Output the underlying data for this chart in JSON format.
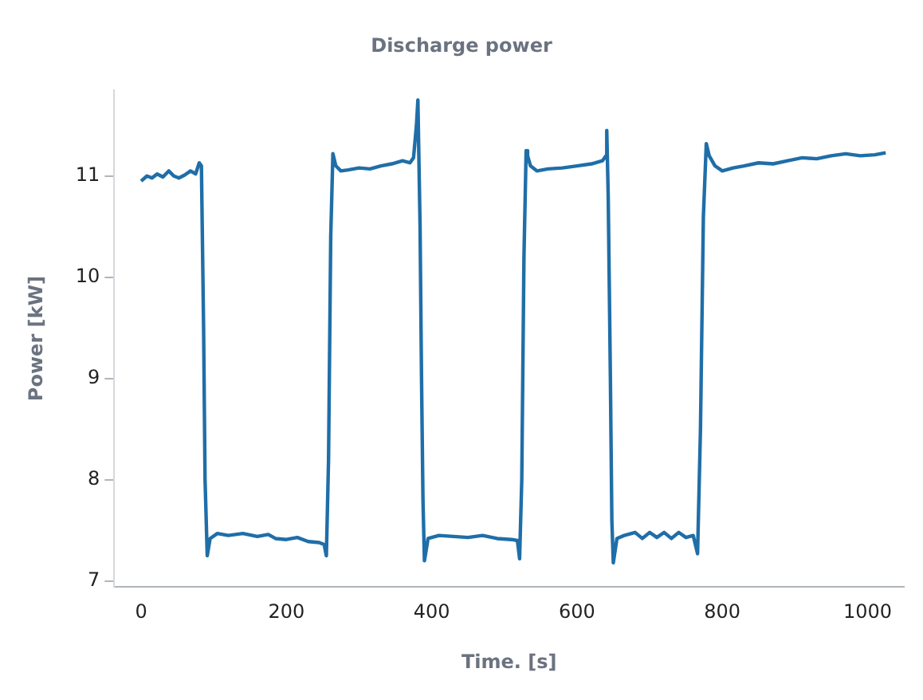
{
  "chart_data": {
    "type": "line",
    "title": "Discharge power",
    "xlabel": "Time. [s]",
    "ylabel": "Power [kW]",
    "xlim": [
      -37,
      1050
    ],
    "ylim": [
      6.94,
      11.85
    ],
    "xticks": [
      0,
      200,
      400,
      600,
      800,
      1000
    ],
    "yticks": [
      7,
      8,
      9,
      10,
      11
    ],
    "grid": false,
    "legend": false,
    "marker": "none",
    "line_style": "solid",
    "series": [
      {
        "color": "#1f6ea8",
        "x": [
          0,
          8,
          15,
          22,
          30,
          38,
          45,
          52,
          60,
          68,
          75,
          80,
          83,
          86,
          88,
          91,
          95,
          105,
          120,
          140,
          160,
          175,
          185,
          200,
          215,
          230,
          245,
          252,
          255,
          258,
          261,
          264,
          268,
          275,
          285,
          300,
          315,
          330,
          345,
          360,
          370,
          375,
          379,
          381,
          384,
          386,
          388,
          390,
          395,
          410,
          430,
          450,
          470,
          490,
          510,
          518,
          521,
          524,
          527,
          530,
          532,
          536,
          545,
          560,
          580,
          600,
          620,
          635,
          640,
          641,
          643,
          646,
          648,
          650,
          655,
          665,
          680,
          690,
          700,
          710,
          720,
          730,
          740,
          750,
          760,
          766,
          770,
          774,
          778,
          782,
          790,
          800,
          815,
          830,
          850,
          870,
          890,
          910,
          930,
          950,
          970,
          990,
          1010,
          1025
        ],
        "values": [
          10.95,
          11.0,
          10.98,
          11.02,
          10.99,
          11.05,
          11.0,
          10.98,
          11.01,
          11.05,
          11.02,
          11.13,
          11.1,
          9.5,
          8.0,
          7.25,
          7.42,
          7.47,
          7.45,
          7.47,
          7.44,
          7.46,
          7.42,
          7.41,
          7.43,
          7.39,
          7.38,
          7.36,
          7.25,
          8.2,
          10.4,
          11.22,
          11.1,
          11.05,
          11.06,
          11.08,
          11.07,
          11.1,
          11.12,
          11.15,
          11.13,
          11.18,
          11.5,
          11.75,
          10.5,
          9.0,
          7.8,
          7.2,
          7.42,
          7.45,
          7.44,
          7.43,
          7.45,
          7.42,
          7.41,
          7.4,
          7.22,
          8.0,
          10.2,
          11.25,
          11.2,
          11.1,
          11.05,
          11.07,
          11.08,
          11.1,
          11.12,
          11.15,
          11.2,
          11.45,
          10.8,
          9.0,
          7.6,
          7.18,
          7.42,
          7.45,
          7.48,
          7.42,
          7.48,
          7.43,
          7.48,
          7.42,
          7.48,
          7.43,
          7.45,
          7.27,
          8.5,
          10.6,
          11.32,
          11.2,
          11.1,
          11.05,
          11.08,
          11.1,
          11.13,
          11.12,
          11.15,
          11.18,
          11.17,
          11.2,
          11.22,
          11.2,
          11.21,
          11.23
        ]
      }
    ]
  }
}
